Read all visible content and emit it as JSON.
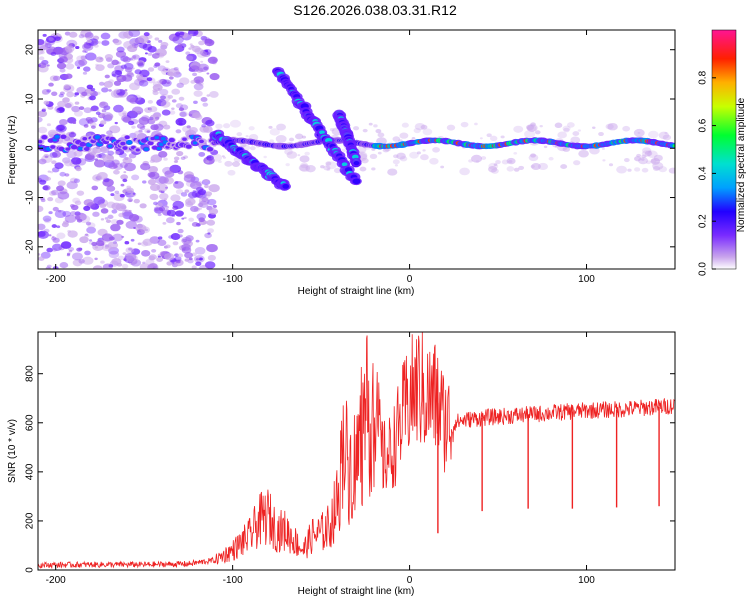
{
  "title": "S126.2026.038.03.31.R12",
  "colors": {
    "trace": "#ee2222",
    "frame": "#000000"
  },
  "chart_data": [
    {
      "type": "heatmap",
      "xlabel": "Height of straight line (km)",
      "ylabel": "Frequency (Hz)",
      "xlim": [
        -210,
        150
      ],
      "ylim": [
        -24.5,
        24
      ],
      "xticks": [
        -200,
        -100,
        0,
        100
      ],
      "yticks": [
        -20,
        -10,
        0,
        10,
        20
      ],
      "colorbar": {
        "label": "Normalized spectral amplitude",
        "range": [
          0,
          1
        ],
        "ticks": [
          0.0,
          0.2,
          0.4,
          0.6,
          0.8
        ],
        "tick_labels": [
          "0.0",
          "0.2",
          "0.4",
          "0.6",
          "0.8"
        ],
        "colormap": [
          "#ffffff",
          "#b98ce0",
          "#5500ff",
          "#0000ff",
          "#00aaff",
          "#00e0c0",
          "#00ff00",
          "#ffff00",
          "#ff7a00",
          "#ff0000",
          "#ff1493"
        ]
      },
      "features": [
        {
          "name": "carrier",
          "x_range": [
            -210,
            150
          ],
          "freq": [
            1,
            1
          ]
        },
        {
          "name": "branch-1",
          "x_range": [
            -110,
            -70
          ],
          "freq": [
            3,
            -8
          ]
        },
        {
          "name": "branch-2",
          "x_range": [
            -75,
            -30
          ],
          "freq": [
            16,
            -7
          ]
        },
        {
          "name": "branch-3",
          "x_range": [
            -40,
            -30
          ],
          "freq": [
            7,
            -3
          ]
        }
      ]
    },
    {
      "type": "line",
      "xlabel": "Height of straight line (km)",
      "ylabel": "SNR (10 * v/v)",
      "xlim": [
        -210,
        150
      ],
      "ylim": [
        0,
        970
      ],
      "xticks": [
        -200,
        -100,
        0,
        100
      ],
      "yticks": [
        0,
        200,
        400,
        600,
        800
      ],
      "series": [
        {
          "name": "SNR",
          "x": [
            -210,
            -180,
            -150,
            -125,
            -110,
            -100,
            -90,
            -85,
            -80,
            -75,
            -70,
            -65,
            -60,
            -55,
            -50,
            -45,
            -40,
            -37,
            -35,
            -30,
            -25,
            -20,
            -15,
            -10,
            -5,
            0,
            5,
            10,
            15,
            20,
            25,
            30,
            40,
            60,
            80,
            100,
            120,
            140,
            150
          ],
          "y": [
            20,
            22,
            22,
            25,
            40,
            80,
            140,
            200,
            220,
            160,
            160,
            120,
            80,
            140,
            150,
            180,
            300,
            600,
            400,
            450,
            600,
            700,
            450,
            480,
            600,
            700,
            750,
            700,
            700,
            600,
            600,
            610,
            620,
            630,
            640,
            650,
            655,
            665,
            670
          ]
        }
      ],
      "spikes_down": [
        {
          "x": 16,
          "y": 150
        },
        {
          "x": 41,
          "y": 240
        },
        {
          "x": 67,
          "y": 250
        },
        {
          "x": 92,
          "y": 250
        },
        {
          "x": 117,
          "y": 255
        },
        {
          "x": 141,
          "y": 260
        }
      ]
    }
  ]
}
